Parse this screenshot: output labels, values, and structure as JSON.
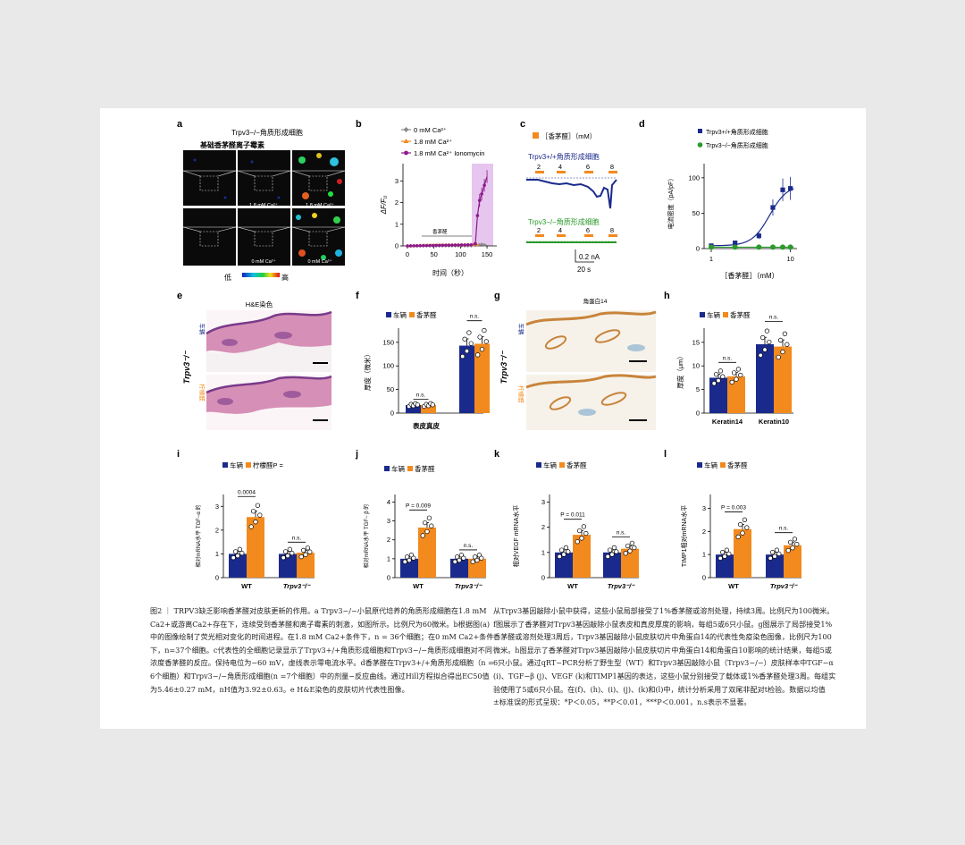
{
  "colors": {
    "vehicle": "#1a2a8c",
    "citral": "#f28a1e",
    "purple": "#8c1a8c",
    "green": "#2a9a2a",
    "gray": "#8a8a8a",
    "shade": "#e6c6ee"
  },
  "panel_a": {
    "letter": "a",
    "title": "Trpv3−/−角质形成细胞",
    "subtitle": "基础香茅醛离子霉素",
    "labels": [
      "1.8 mM Ca²⁺",
      "1.8 mM Ca²⁺",
      "0 mM Ca²⁺",
      "0 mM Ca²⁺"
    ],
    "scale_low": "低",
    "scale_high": "高"
  },
  "panel_b": {
    "letter": "b",
    "legend": [
      "0 mM Ca²⁺",
      "1.8 mM Ca²⁺",
      "1.8 mM Ca²⁺ Ionomycin"
    ],
    "ylabel": "ΔF/F₀",
    "xlabel": "时间（秒）",
    "annotation": "香茅醛",
    "yticks": [
      "0",
      "1",
      "2",
      "3"
    ],
    "xticks": [
      "0",
      "50",
      "100",
      "150"
    ]
  },
  "panel_c": {
    "letter": "c",
    "legend": "［香茅醛］（mM）",
    "trace1": "Trpv3+/+角质形成细胞",
    "trace2": "Trpv3−/−角质形成细胞",
    "doses": [
      "2",
      "4",
      "6",
      "8"
    ],
    "scale_i": "0.2 nA",
    "scale_t": "20 s"
  },
  "panel_d": {
    "letter": "d",
    "legend": [
      "Trpv3+/+角质形成细胞",
      "Trpv3−/−角质形成细胞"
    ],
    "ylabel": "电流密度（pA/pF）",
    "xlabel": "［香茅醛］（mM）",
    "yticks": [
      "0",
      "50",
      "100"
    ],
    "xticks": [
      "1",
      "10"
    ]
  },
  "panel_e": {
    "letter": "e",
    "title": "H&E染色",
    "side_label": "Trpv3⁻/⁻",
    "row1": "车辆",
    "row2": "柠檬醛"
  },
  "panel_f": {
    "letter": "f",
    "legend": [
      "车辆",
      "香茅醛"
    ],
    "ylabel": "厚度（微米）",
    "xlabel": "表皮真皮",
    "yticks": [
      "0",
      "50",
      "100",
      "150"
    ],
    "ns": "n.s."
  },
  "panel_g": {
    "letter": "g",
    "title": "角蛋白14",
    "side_label": "Trpv3⁻/⁻",
    "row1": "车辆",
    "row2": "柠檬醛"
  },
  "panel_h": {
    "letter": "h",
    "legend": [
      "车辆",
      "香茅醛"
    ],
    "ylabel": "厚度（μm）",
    "xlabels": [
      "Keratin14",
      "Keratin10"
    ],
    "yticks": [
      "0",
      "5",
      "10",
      "15"
    ],
    "ns": "n.s."
  },
  "panel_i": {
    "letter": "i",
    "legend": [
      "车辆",
      "柠檬醛P ="
    ],
    "ylabel": "相对mRNA水平 TGF−α 的",
    "p": "0.0004",
    "yticks": [
      "0",
      "1",
      "2",
      "3"
    ],
    "ns": "n.s.",
    "groups": [
      "WT",
      "Trpv3⁻/⁻"
    ]
  },
  "panel_j": {
    "letter": "j",
    "legend": [
      "车辆",
      "香茅醛"
    ],
    "ylabel": "相对mRNA水平 TGF− β 的",
    "p": "P = 0.009",
    "yticks": [
      "0",
      "1",
      "2",
      "3",
      "4"
    ],
    "ns": "n.s.",
    "groups": [
      "WT",
      "Trpv3⁻/⁻"
    ]
  },
  "panel_k": {
    "letter": "k",
    "legend": [
      "车辆",
      "香茅醛"
    ],
    "ylabel": "相对VEGF mRNA水平",
    "p": "P = 0.011",
    "yticks": [
      "0",
      "1",
      "2",
      "3"
    ],
    "ns": "n.s.",
    "groups": [
      "WT",
      "Trpv3⁻/⁻"
    ]
  },
  "panel_l": {
    "letter": "l",
    "legend": [
      "车辆",
      "香茅醛"
    ],
    "ylabel": "TIMP1相对mRNA水平",
    "p": "P = 0.003",
    "yticks": [
      "0",
      "1",
      "2",
      "3"
    ],
    "ns": "n.s.",
    "groups": [
      "WT",
      "Trpv3⁻/⁻"
    ]
  },
  "chart_data": [
    {
      "panel": "b",
      "type": "line",
      "ylim": [
        0,
        3.8
      ],
      "xlim": [
        0,
        160
      ],
      "series": [
        {
          "name": "0 mM Ca²⁺",
          "x": [
            0,
            120,
            128,
            135,
            140,
            145,
            150
          ],
          "y": [
            0,
            0,
            0.02,
            0.05,
            0.08,
            0.05,
            0.03
          ]
        },
        {
          "name": "1.8 mM Ca²⁺",
          "x": [
            0,
            50,
            120,
            125,
            130,
            135
          ],
          "y": [
            0,
            0.05,
            0.06,
            0.08,
            0.06,
            0.05
          ]
        },
        {
          "name": "1.8 mM Ca²⁺ Ionomycin",
          "x": [
            0,
            120,
            128,
            132,
            136,
            140,
            145,
            150
          ],
          "y": [
            0,
            0.05,
            0.1,
            1.4,
            2.1,
            2.4,
            2.8,
            3.2
          ]
        }
      ]
    },
    {
      "panel": "d",
      "type": "line",
      "xscale": "log",
      "xlim": [
        1,
        10
      ],
      "ylim": [
        0,
        120
      ],
      "series": [
        {
          "name": "Trpv3+/+角质形成细胞",
          "x": [
            1,
            2,
            4,
            6,
            8,
            10
          ],
          "y": [
            4,
            8,
            18,
            58,
            83,
            85
          ]
        },
        {
          "name": "Trpv3−/−角质形成细胞",
          "x": [
            1,
            2,
            4,
            6,
            8,
            10
          ],
          "y": [
            2,
            2,
            2,
            2,
            2,
            2
          ]
        }
      ]
    },
    {
      "panel": "f",
      "type": "bar",
      "categories": [
        "表皮",
        "真皮"
      ],
      "ylim": [
        0,
        180
      ],
      "series": [
        {
          "name": "车辆",
          "values": [
            17,
            143
          ]
        },
        {
          "name": "香茅醛",
          "values": [
            17,
            147
          ]
        }
      ]
    },
    {
      "panel": "h",
      "type": "bar",
      "categories": [
        "Keratin14",
        "Keratin10"
      ],
      "ylim": [
        0,
        18
      ],
      "series": [
        {
          "name": "车辆",
          "values": [
            7.5,
            14.6
          ]
        },
        {
          "name": "香茅醛",
          "values": [
            7.8,
            14.1
          ]
        }
      ]
    },
    {
      "panel": "i",
      "type": "bar",
      "categories": [
        "WT",
        "Trpv3⁻/⁻"
      ],
      "ylim": [
        0,
        3.5
      ],
      "series": [
        {
          "name": "车辆",
          "values": [
            1,
            1
          ]
        },
        {
          "name": "柠檬醛",
          "values": [
            2.55,
            1.05
          ]
        }
      ]
    },
    {
      "panel": "j",
      "type": "bar",
      "categories": [
        "WT",
        "Trpv3⁻/⁻"
      ],
      "ylim": [
        0,
        4.4
      ],
      "series": [
        {
          "name": "车辆",
          "values": [
            1,
            1
          ]
        },
        {
          "name": "香茅醛",
          "values": [
            2.65,
            1
          ]
        }
      ]
    },
    {
      "panel": "k",
      "type": "bar",
      "categories": [
        "WT",
        "Trpv3⁻/⁻"
      ],
      "ylim": [
        0,
        3.3
      ],
      "series": [
        {
          "name": "车辆",
          "values": [
            1,
            1
          ]
        },
        {
          "name": "香茅醛",
          "values": [
            1.7,
            1.15
          ]
        }
      ]
    },
    {
      "panel": "l",
      "type": "bar",
      "categories": [
        "WT",
        "Trpv3⁻/⁻"
      ],
      "ylim": [
        0,
        3.6
      ],
      "series": [
        {
          "name": "车辆",
          "values": [
            1,
            1
          ]
        },
        {
          "name": "香茅醛",
          "values": [
            2.1,
            1.4
          ]
        }
      ]
    }
  ],
  "caption_left": "图2 ｜ TRPV3缺乏影响香茅醛对皮肤更新的作用。a Trpv3−/−小鼠原代培养的角质形成细胞在1.8 mM Ca2+或游离Ca2+存在下，连续受到香茅醛和离子霉素的刺激，如图所示。比例尺为60微米。b根据图(a)中的图像绘制了荧光相对变化的时间进程。在1.8 mM Ca2+条件下，n = 36个细胞；在0 mM Ca2+条件下，n=37个细胞。c代表性的全细胞记录显示了Trpv3+/+角质形成细胞和Trpv3−/−角质形成细胞对不同浓度香茅醛的反应。保持电位为−60 mV，虚线表示零电流水平。d香茅醛在Trpv3+/+角质形成细胞（n = 6个细胞）和Trpv3−/−角质形成细胞(n =7个细胞）中的剂量−反应曲线。通过Hill方程拟合得出EC50值为5.46±0.27 mM，nH值为3.92±0.63。e H&E染色的皮肤切片代表性图像。",
  "caption_right": "从Trpv3基因敲除小鼠中获得，这些小鼠局部接受了1%香茅醛或溶剂处理，持续3周。比例尺为100微米。f图展示了香茅醛对Trpv3基因敲除小鼠表皮和真皮厚度的影响，每组5或6只小鼠。g图展示了局部接受1%香茅醛或溶剂处理3周后，Trpv3基因敲除小鼠皮肤切片中角蛋白14的代表性免疫染色图像，比例尺为100微米。h图显示了香茅醛对Trpv3基因敲除小鼠皮肤切片中角蛋白14和角蛋白10影响的统计结果，每组5或6只小鼠。通过qRT−PCR分析了野生型（WT）和Trpv3基因敲除小鼠（Trpv3−/−）皮肤样本中TGF−α (i)、TGF−β (j)、VEGF (k)和TIMP1基因的表达，这些小鼠分别接受了载体或1%香茅醛处理3周。每组实验使用了5或6只小鼠。在(f)、(h)、(i)、(j)、(k)和(l)中，统计分析采用了双尾非配对t检验。数据以均值±标准误的形式呈现：*P＜0.05，**P＜0.01，***P＜0.001，n.s表示不显著。"
}
